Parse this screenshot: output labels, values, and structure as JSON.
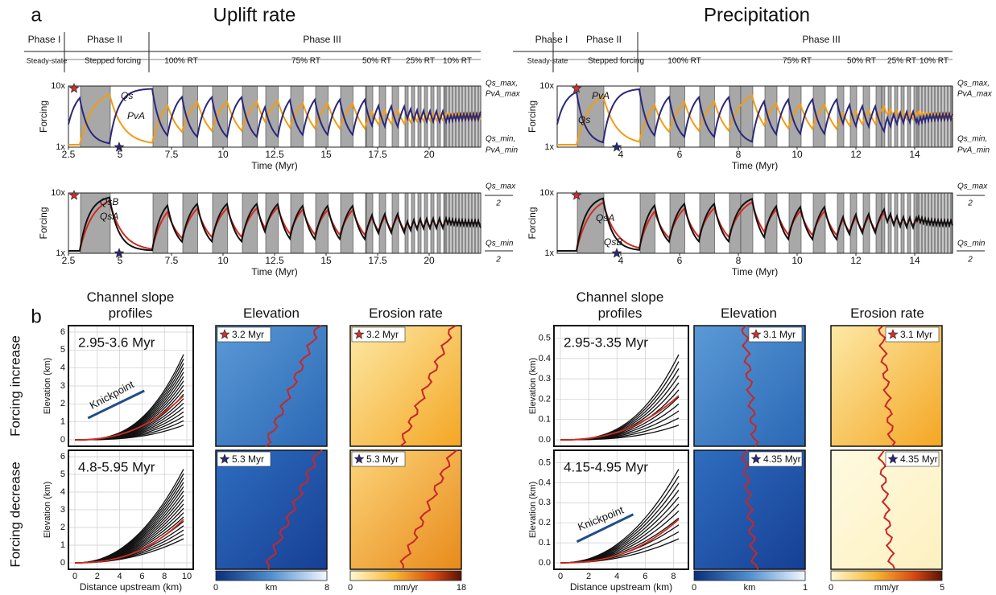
{
  "a": {
    "label": "a",
    "uplift": {
      "title": "Uplift rate",
      "phases": [
        "Phase I",
        "Phase II",
        "Phase III"
      ],
      "notes": [
        "Steady-state",
        "Stepped forcing",
        "100% RT",
        "75% RT",
        "50% RT",
        "25% RT",
        "10% RT"
      ],
      "top": {
        "y_label": "Forcing",
        "y_ticks": [
          "10x",
          "1x"
        ],
        "x_ticks": [
          "2.5",
          "5",
          "7.5",
          "10",
          "12.5",
          "15",
          "17.5",
          "20"
        ],
        "x_label": "Time (Myr)",
        "curves": [
          "Qs",
          "PvA"
        ],
        "right": [
          "Qs_max,",
          "PvA_max",
          "Qs_min,",
          "PvA_min"
        ]
      },
      "bottom": {
        "y_label": "Forcing",
        "y_ticks": [
          "10x",
          "1x"
        ],
        "x_ticks": [
          "2.5",
          "5",
          "7.5",
          "10",
          "12.5",
          "15",
          "17.5",
          "20"
        ],
        "x_label": "Time (Myr)",
        "curves": [
          "QsB",
          "QsA"
        ],
        "right": [
          "Qs_max",
          "2",
          "Qs_min",
          "2"
        ]
      }
    },
    "precipitation": {
      "title": "Precipitation",
      "phases": [
        "Phase I",
        "Phase II",
        "Phase III"
      ],
      "notes": [
        "Steady-state",
        "Stepped forcing",
        "100% RT",
        "75% RT",
        "50% RT",
        "25% RT",
        "10% RT"
      ],
      "top": {
        "y_label": "Forcing",
        "y_ticks": [
          "10x",
          "1x"
        ],
        "x_ticks": [
          "4",
          "6",
          "8",
          "10",
          "12",
          "14"
        ],
        "x_label": "Time (Myr)",
        "curves": [
          "PvA",
          "Qs"
        ],
        "right": [
          "Qs_max,",
          "PvA_max",
          "Qs_min,",
          "PvA_min"
        ]
      },
      "bottom": {
        "y_label": "Forcing",
        "y_ticks": [
          "10x",
          "1x"
        ],
        "x_ticks": [
          "4",
          "6",
          "8",
          "10",
          "12",
          "14"
        ],
        "x_label": "Time (Myr)",
        "curves": [
          "QsA",
          "QsB"
        ],
        "right": [
          "Qs_max",
          "2",
          "Qs_min",
          "2"
        ]
      }
    }
  },
  "b": {
    "label": "b",
    "rows": [
      "Forcing increase",
      "Forcing decrease"
    ],
    "uplift": {
      "headers": [
        "Channel slope profiles",
        "Elevation",
        "Erosion rate"
      ],
      "y_label": "Elevation (km)",
      "x_label": "Distance upstream (km)",
      "y_ticks": [
        "0",
        "1",
        "2",
        "3",
        "4",
        "5",
        "6"
      ],
      "x_ticks": [
        "0",
        "2",
        "4",
        "6",
        "8",
        "10"
      ],
      "ranges": [
        "2.95-3.6 Myr",
        "4.8-5.95 Myr"
      ],
      "knickpoint": "Knickpoint",
      "times": [
        "3.2 Myr",
        "5.3 Myr"
      ],
      "elev_bar": [
        "0",
        "km",
        "8"
      ],
      "eros_bar": [
        "0",
        "mm/yr",
        "18"
      ]
    },
    "precipitation": {
      "headers": [
        "Channel slope profiles",
        "Elevation",
        "Erosion rate"
      ],
      "y_label": "Elevation (km)",
      "x_label": "Distance upstream (km)",
      "y_ticks": [
        "0.0",
        "0.1",
        "0.2",
        "0.3",
        "0.4",
        "0.5"
      ],
      "x_ticks": [
        "0",
        "2",
        "4",
        "6",
        "8"
      ],
      "ranges": [
        "2.95-3.35 Myr",
        "4.15-4.95 Myr"
      ],
      "knickpoint": "Knickpoint",
      "times": [
        "3.1 Myr",
        "4.35 Myr"
      ],
      "elev_bar": [
        "0",
        "km",
        "1"
      ],
      "eros_bar": [
        "0",
        "mm/yr",
        "5"
      ]
    }
  }
}
